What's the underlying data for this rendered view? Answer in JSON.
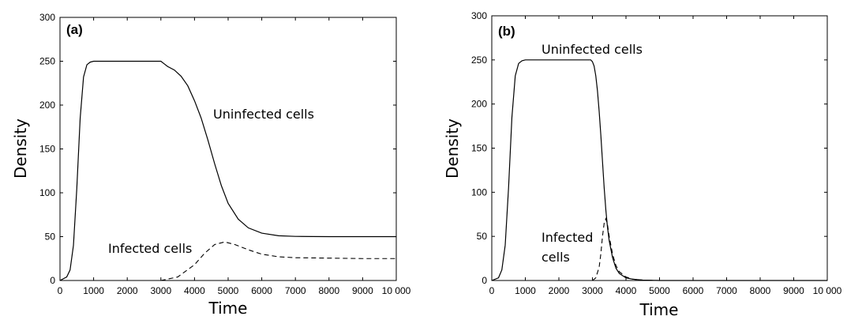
{
  "chart_data": [
    {
      "type": "line",
      "panel_label": "(a)",
      "xlabel": "Time",
      "ylabel": "Density",
      "xlim": [
        0,
        10000
      ],
      "ylim": [
        0,
        300
      ],
      "x_ticks": [
        "0",
        "1000",
        "2000",
        "3000",
        "4000",
        "5000",
        "6000",
        "7000",
        "8000",
        "9000",
        "10 000"
      ],
      "y_ticks": [
        "0",
        "50",
        "100",
        "150",
        "200",
        "250",
        "300"
      ],
      "series": [
        {
          "name": "Uninfected cells",
          "style": "solid",
          "x": [
            0,
            200,
            300,
            400,
            500,
            600,
            700,
            800,
            900,
            1000,
            1200,
            1500,
            2000,
            2500,
            3000,
            3100,
            3200,
            3400,
            3600,
            3800,
            4000,
            4200,
            4400,
            4600,
            4800,
            5000,
            5300,
            5600,
            6000,
            6500,
            7000,
            7500,
            8000,
            9000,
            10000
          ],
          "y": [
            0,
            4,
            12,
            40,
            105,
            185,
            232,
            246,
            249,
            250,
            250,
            250,
            250,
            250,
            250,
            247,
            244,
            240,
            233,
            222,
            205,
            185,
            160,
            133,
            108,
            88,
            70,
            60,
            54,
            51,
            50.3,
            50.1,
            50,
            50,
            50
          ]
        },
        {
          "name": "Infected cells",
          "style": "dashed",
          "x": [
            3000,
            3500,
            4000,
            4300,
            4600,
            4900,
            5200,
            5600,
            6000,
            6500,
            7000,
            8000,
            9000,
            10000
          ],
          "y": [
            0,
            4,
            18,
            31,
            41,
            44,
            41,
            35,
            30,
            27,
            26,
            25.5,
            25,
            25
          ]
        }
      ],
      "annotations": [
        "Uninfected cells",
        "Infected cells"
      ]
    },
    {
      "type": "line",
      "panel_label": "(b)",
      "xlabel": "Time",
      "ylabel": "Density",
      "xlim": [
        0,
        10000
      ],
      "ylim": [
        0,
        300
      ],
      "x_ticks": [
        "0",
        "1000",
        "2000",
        "3000",
        "4000",
        "5000",
        "6000",
        "7000",
        "8000",
        "9000",
        "10 000"
      ],
      "y_ticks": [
        "0",
        "50",
        "100",
        "150",
        "200",
        "250",
        "300"
      ],
      "series": [
        {
          "name": "Uninfected cells",
          "style": "solid",
          "x": [
            0,
            200,
            300,
            400,
            500,
            600,
            700,
            800,
            900,
            1000,
            1500,
            2000,
            2500,
            2950,
            3000,
            3050,
            3100,
            3150,
            3200,
            3250,
            3300,
            3350,
            3400,
            3450,
            3500,
            3600,
            3700,
            3800,
            4000,
            4200,
            4500,
            5000,
            6000,
            10000
          ],
          "y": [
            0,
            3,
            12,
            40,
            105,
            185,
            232,
            246,
            249,
            250,
            250,
            250,
            250,
            250,
            248,
            243,
            232,
            215,
            192,
            165,
            135,
            105,
            80,
            60,
            45,
            26,
            14,
            8,
            3,
            1.5,
            0.5,
            0,
            0,
            0
          ]
        },
        {
          "name": "Infected cells",
          "style": "dashed",
          "x": [
            3000,
            3100,
            3200,
            3250,
            3300,
            3350,
            3400,
            3450,
            3500,
            3600,
            3700,
            3800,
            4000,
            4200,
            4500,
            5000
          ],
          "y": [
            0,
            3,
            15,
            30,
            50,
            65,
            70,
            63,
            50,
            30,
            17,
            10,
            4,
            1.5,
            0.4,
            0
          ]
        }
      ],
      "annotations": [
        "Uninfected cells",
        "Infected\ncells"
      ]
    }
  ]
}
